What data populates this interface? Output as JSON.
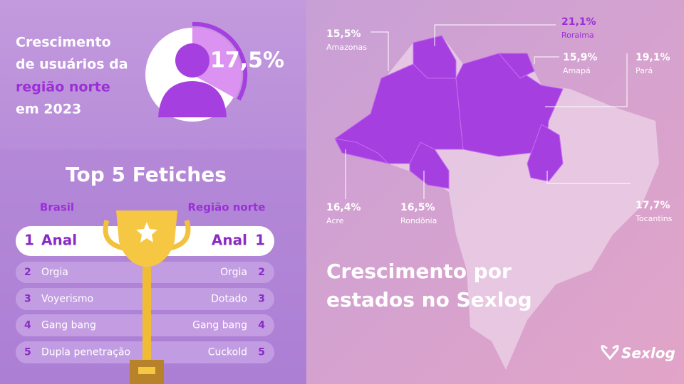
{
  "headline": {
    "lines": [
      "Crescimento",
      "de usuários da",
      "região norte",
      "em 2023"
    ]
  },
  "gauge": {
    "value": "17,5%"
  },
  "ranking": {
    "title": "Top 5 Fetiches",
    "columns": [
      "Brasil",
      "Região norte"
    ],
    "rows": [
      {
        "rank": 1,
        "brasil": "Anal",
        "norte": "Anal"
      },
      {
        "rank": 2,
        "brasil": "Orgia",
        "norte": "Orgia"
      },
      {
        "rank": 3,
        "brasil": "Voyerismo",
        "norte": "Dotado"
      },
      {
        "rank": 4,
        "brasil": "Gang bang",
        "norte": "Gang bang"
      },
      {
        "rank": 5,
        "brasil": "Dupla penetração",
        "norte": "Cuckold"
      }
    ]
  },
  "map": {
    "title_lines": [
      "Crescimento por",
      "estados no Sexlog"
    ],
    "states": [
      {
        "name": "Amazonas",
        "value": "15,5%"
      },
      {
        "name": "Roraima",
        "value": "21,1%"
      },
      {
        "name": "Amapá",
        "value": "15,9%"
      },
      {
        "name": "Pará",
        "value": "19,1%"
      },
      {
        "name": "Acre",
        "value": "16,4%"
      },
      {
        "name": "Rondônia",
        "value": "16,5%"
      },
      {
        "name": "Tocantins",
        "value": "17,7%"
      }
    ]
  },
  "logo": "Sexlog"
}
